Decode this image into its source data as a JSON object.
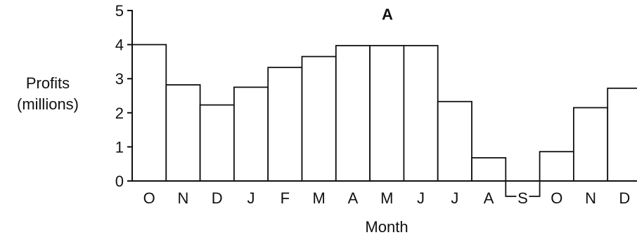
{
  "chart_data": {
    "type": "bar",
    "title": "A",
    "ylabel": [
      "Profits",
      "(millions)"
    ],
    "xlabel": "Month",
    "categories": [
      "O",
      "N",
      "D",
      "J",
      "F",
      "M",
      "A",
      "M",
      "J",
      "J",
      "A",
      "S",
      "O",
      "N",
      "D"
    ],
    "values": [
      4.0,
      2.82,
      2.23,
      2.75,
      3.33,
      3.65,
      3.97,
      3.97,
      3.97,
      2.33,
      0.68,
      -0.45,
      0.86,
      2.15,
      2.72
    ],
    "ylim": [
      0,
      5
    ],
    "yticks": [
      "0",
      "1",
      "2",
      "3",
      "4",
      "5"
    ],
    "grid": false,
    "legend": "none"
  }
}
